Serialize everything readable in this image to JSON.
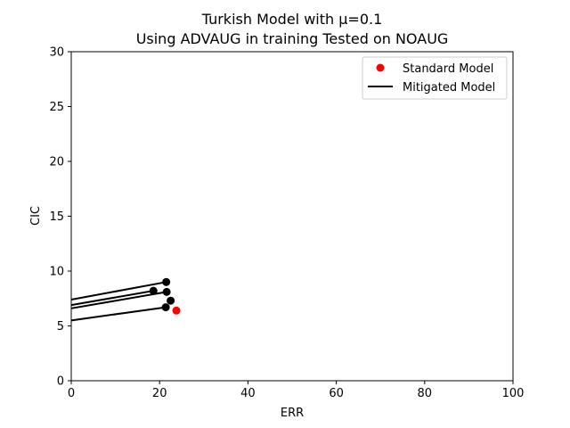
{
  "chart_data": {
    "type": "scatter",
    "title": "Turkish Model with μ=0.1",
    "subtitle": "Using ADVAUG in training Tested on NOAUG",
    "xlabel": "ERR",
    "ylabel": "CIC",
    "xlim": [
      0,
      100
    ],
    "ylim": [
      0,
      30
    ],
    "xticks": [
      0,
      20,
      40,
      60,
      80,
      100
    ],
    "yticks": [
      0,
      5,
      10,
      15,
      20,
      25,
      30
    ],
    "grid": false,
    "legend_position": "top-right",
    "series": [
      {
        "name": "Standard Model",
        "kind": "scatter",
        "color": "#ff0000",
        "points": [
          [
            23.8,
            6.4
          ]
        ]
      },
      {
        "name": "Mitigated Model",
        "kind": "line",
        "color": "#000000",
        "lines": [
          [
            [
              0,
              7.4
            ],
            [
              21.5,
              9.0
            ]
          ],
          [
            [
              0,
              6.9
            ],
            [
              18.6,
              8.2
            ]
          ],
          [
            [
              0,
              6.6
            ],
            [
              21.6,
              8.1
            ]
          ],
          [
            [
              0,
              5.5
            ],
            [
              21.4,
              6.7
            ]
          ]
        ],
        "extra_points": [
          [
            22.5,
            7.3
          ]
        ]
      }
    ]
  }
}
